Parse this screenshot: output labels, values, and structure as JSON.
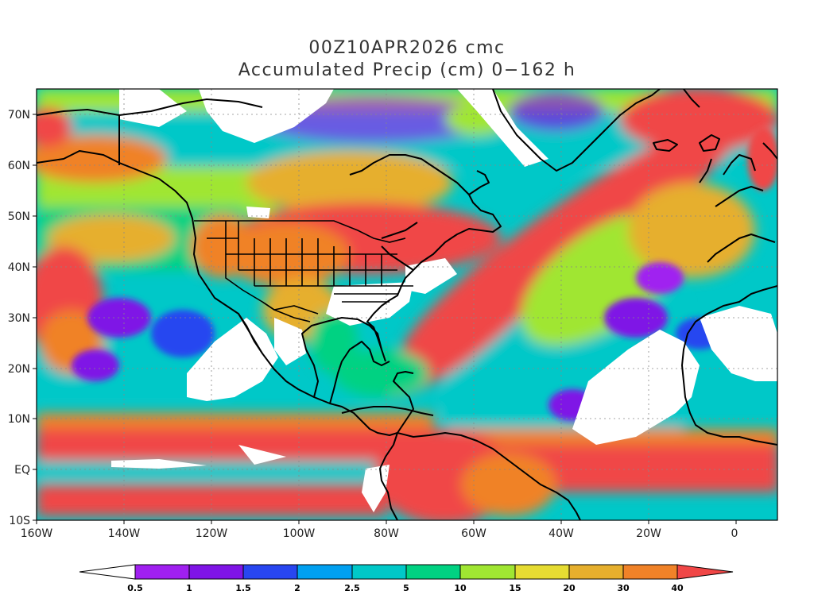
{
  "title": {
    "line1": "00Z10APR2026 cmc",
    "line2": "Accumulated Precip (cm) 0−162 h"
  },
  "axes": {
    "lon_ticks": [
      "160W",
      "140W",
      "120W",
      "100W",
      "80W",
      "60W",
      "40W",
      "20W",
      "0"
    ],
    "lat_ticks": [
      "70N",
      "60N",
      "50N",
      "40N",
      "30N",
      "20N",
      "10N",
      "EQ",
      "10S"
    ]
  },
  "colorbar": {
    "labels": [
      "0.5",
      "1",
      "1.5",
      "2",
      "2.5",
      "5",
      "10",
      "15",
      "20",
      "30",
      "40"
    ],
    "colors": [
      "#ffffff",
      "#a020f0",
      "#7f14e6",
      "#2846f0",
      "#00a0f0",
      "#00c8c8",
      "#00d282",
      "#a0e632",
      "#e6dc32",
      "#e6af2d",
      "#f08228",
      "#f04646"
    ]
  }
}
